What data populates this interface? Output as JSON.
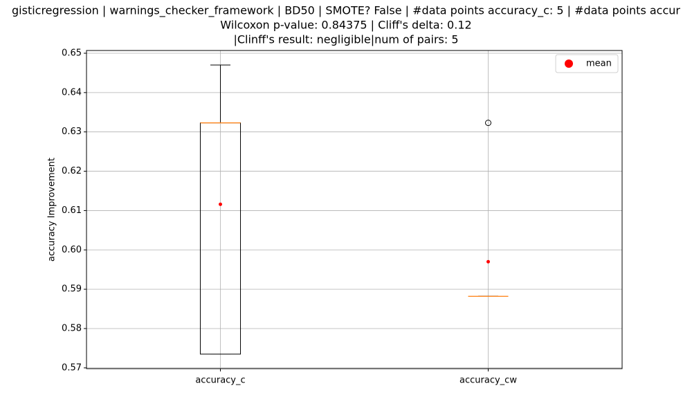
{
  "chart_data": {
    "type": "box",
    "title": [
      "gisticregression | warnings_checker_framework | BD50 | SMOTE? False | #data points accuracy_c: 5 | #data points accur",
      "Wilcoxon p-value: 0.84375 | Cliff's delta: 0.12",
      "|Clinff's result: negligible|num of pairs: 5"
    ],
    "y_label": "accuracy Improvement",
    "categories": [
      "accuracy_c",
      "accuracy_cw"
    ],
    "boxes": [
      {
        "whislo": 0.5735,
        "q1": 0.5735,
        "med": 0.6323,
        "q3": 0.6323,
        "whishi": 0.647,
        "fliers": [],
        "mean": 0.6116
      },
      {
        "whislo": 0.5882,
        "q1": 0.5882,
        "med": 0.5882,
        "q3": 0.5882,
        "whishi": 0.5882,
        "fliers": [
          0.6323
        ],
        "mean": 0.597
      }
    ],
    "box_color": "#000000",
    "median_color": "#ff7f0e",
    "mean_color": "#ff0000",
    "ylim": [
      0.5698,
      0.6507
    ],
    "yticks": [
      0.57,
      0.58,
      0.59,
      {
        "value": 0.6,
        "label": "0.60"
      },
      0.61,
      0.62,
      0.63,
      0.64,
      0.65
    ],
    "grid": true,
    "legend": {
      "labels": [
        "mean"
      ],
      "loc": "upper right"
    }
  }
}
